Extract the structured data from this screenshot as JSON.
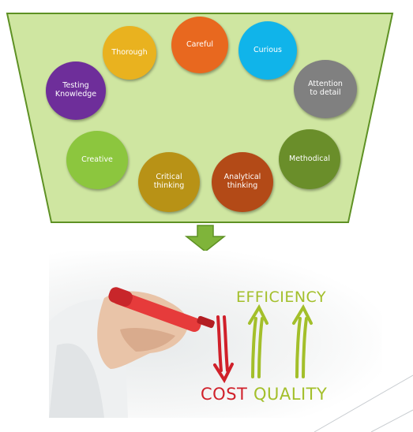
{
  "funnel": {
    "fill": "#cfe6a1",
    "stroke": "#5e9124",
    "arrow_fill": "#7fb43a"
  },
  "traits": [
    {
      "label": "Thorough",
      "color": "#e9b21f"
    },
    {
      "label": "Careful",
      "color": "#e8681f"
    },
    {
      "label": "Curious",
      "color": "#10b4ea"
    },
    {
      "label": "Testing\nKnowledge",
      "color": "#6e2e9a"
    },
    {
      "label": "Attention\nto detail",
      "color": "#808080"
    },
    {
      "label": "Creative",
      "color": "#8cc63e"
    },
    {
      "label": "Critical\nthinking",
      "color": "#b89216"
    },
    {
      "label": "Analytical\nthinking",
      "color": "#b34a17"
    },
    {
      "label": "Methodical",
      "color": "#6a8e2a"
    }
  ],
  "illustration": {
    "efficiency": "EFFICIENCY",
    "cost": "COST",
    "quality": "QUALITY",
    "green": "#a3bf2a",
    "red": "#d0202a"
  }
}
